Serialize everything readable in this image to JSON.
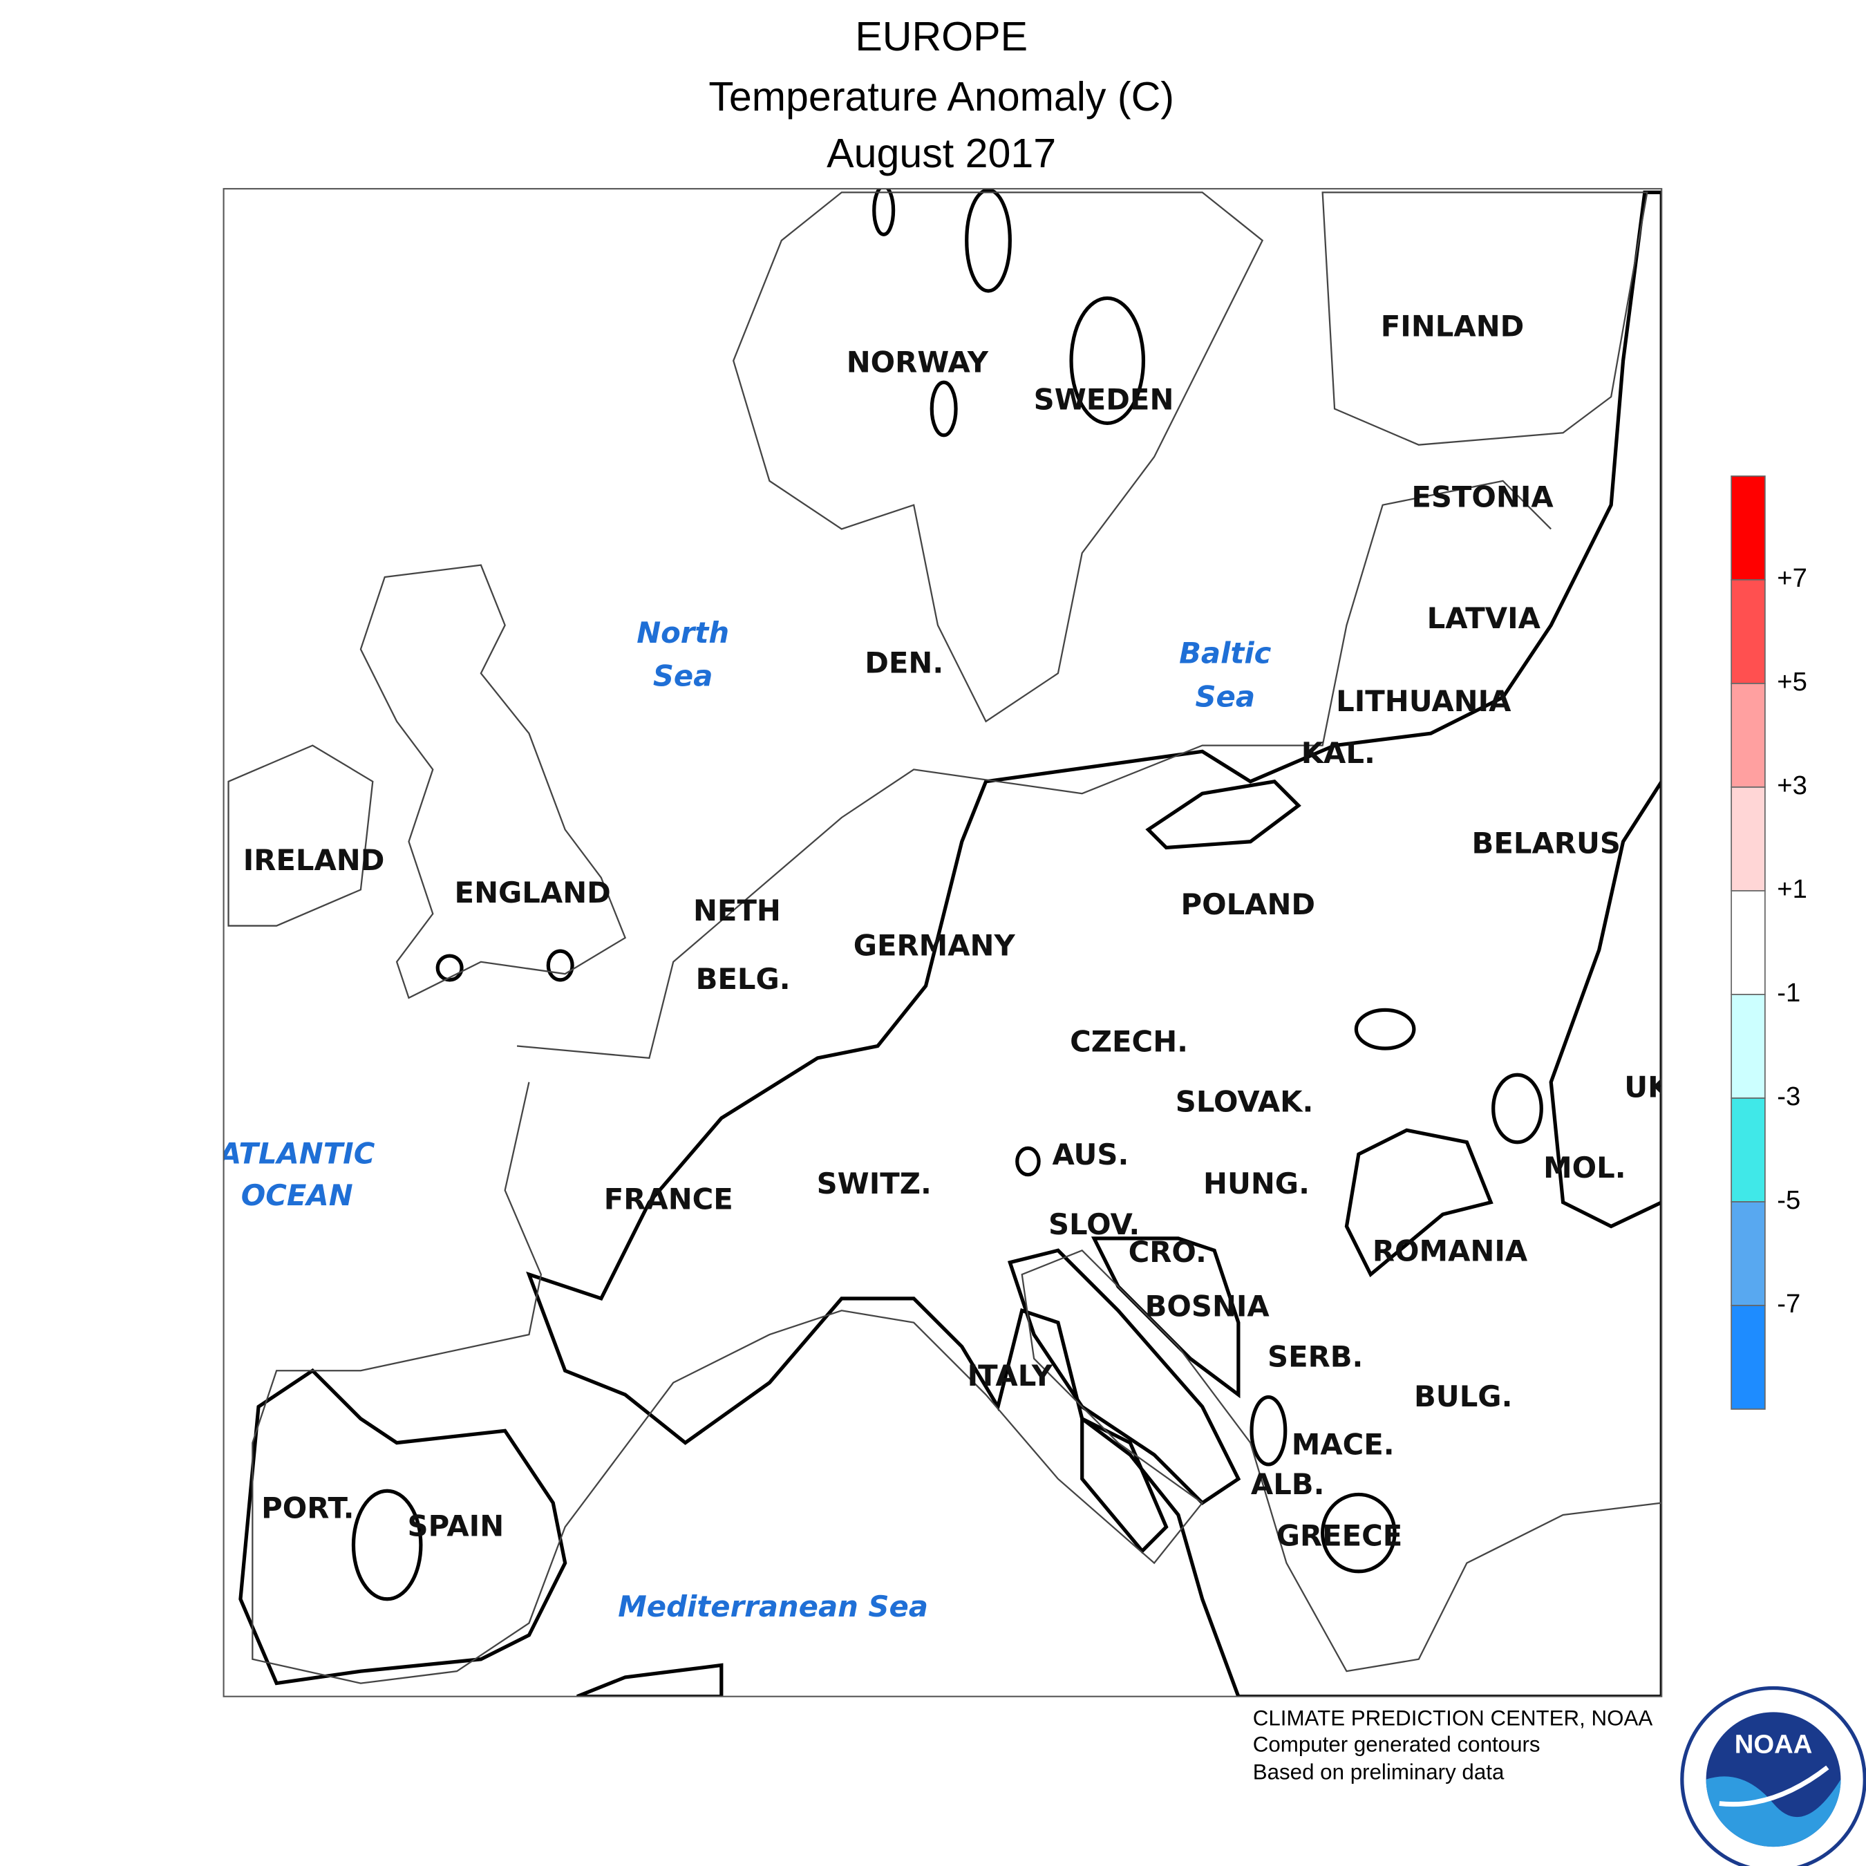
{
  "header": {
    "title": "EUROPE",
    "subtitle": "Temperature Anomaly (C)",
    "date": "August 2017"
  },
  "map": {
    "countries": [
      "NORWAY",
      "SWEDEN",
      "FINLAND",
      "ESTONIA",
      "LATVIA",
      "LITHUANIA",
      "KAL.",
      "BELARUS",
      "POLAND",
      "IRELAND",
      "ENGLAND",
      "NETH",
      "BELG.",
      "GERMANY",
      "DEN.",
      "CZECH.",
      "SLOVAK.",
      "UK",
      "AUS.",
      "HUNG.",
      "MOL.",
      "SWITZ.",
      "FRANCE",
      "SLOV.",
      "CRO.",
      "ROMANIA",
      "BOSNIA",
      "SERB.",
      "ITALY",
      "BULG.",
      "MACE.",
      "ALB.",
      "GREECE",
      "PORT.",
      "SPAIN"
    ],
    "seas": [
      [
        "North",
        "Sea"
      ],
      [
        "Baltic",
        "Sea"
      ],
      [
        "ATLANTIC",
        "OCEAN"
      ],
      [
        "Mediterranean Sea"
      ]
    ]
  },
  "legend": {
    "colors": [
      "#ff0000",
      "#ff5050",
      "#ffa0a0",
      "#ffd6d6",
      "#ffffff",
      "#ccffff",
      "#40e8e8",
      "#58a8f0",
      "#1e8cff"
    ],
    "ticks": [
      "+7",
      "+5",
      "+3",
      "+1",
      "-1",
      "-3",
      "-5",
      "-7"
    ]
  },
  "footer": [
    "CLIMATE PREDICTION CENTER, NOAA",
    "Computer generated contours",
    "Based on preliminary data"
  ],
  "logo": "NOAA"
}
